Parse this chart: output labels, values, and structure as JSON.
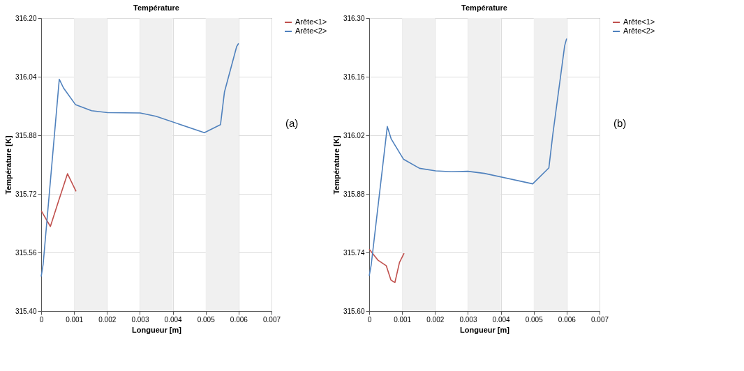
{
  "chart_data": [
    {
      "type": "line",
      "title": "Température",
      "xlabel": "Longueur [m]",
      "ylabel": "Température [K]",
      "annotations": [
        "(a)"
      ],
      "xlim": [
        0,
        0.007
      ],
      "xticks": [
        0,
        0.001,
        0.002,
        0.003,
        0.004,
        0.005,
        0.006,
        0.007
      ],
      "ylim": [
        315.4,
        316.2
      ],
      "yticks": [
        {
          "value": 315.4,
          "label": "315.40"
        },
        315.56,
        315.72,
        315.88,
        316.04,
        {
          "value": 316.2,
          "label": "316.20"
        }
      ],
      "grid": true,
      "legend": "top right",
      "marker": "none",
      "line_style": "solid",
      "bands": [
        {
          "axis": "x",
          "from": 0.001,
          "to": 0.002,
          "color": "#f0f0f0"
        },
        {
          "axis": "x",
          "from": 0.003,
          "to": 0.004,
          "color": "#f0f0f0"
        },
        {
          "axis": "x",
          "from": 0.005,
          "to": 0.006,
          "color": "#f0f0f0"
        }
      ],
      "series": [
        {
          "name": "Arête<1>",
          "color": "#c0504d",
          "x": [
            0,
            0.00028,
            0.00053,
            0.0008,
            0.00106
          ],
          "values": [
            315.674,
            315.631,
            315.701,
            315.775,
            315.727
          ]
        },
        {
          "name": "Arête<2>",
          "color": "#4f81bd",
          "x": [
            0,
            6e-05,
            0.00055,
            0.00068,
            0.00104,
            0.00153,
            0.00202,
            0.00301,
            0.00349,
            0.00496,
            0.00545,
            0.00557,
            0.00594,
            0.006
          ],
          "values": [
            315.494,
            315.528,
            316.033,
            316.009,
            315.964,
            315.947,
            315.942,
            315.941,
            315.932,
            315.887,
            315.909,
            315.998,
            316.122,
            316.131
          ]
        }
      ]
    },
    {
      "type": "line",
      "title": "Température",
      "xlabel": "Longueur [m]",
      "ylabel": "Température [K]",
      "annotations": [
        "(b)"
      ],
      "xlim": [
        0,
        0.007
      ],
      "xticks": [
        0,
        0.001,
        0.002,
        0.003,
        0.004,
        0.005,
        0.006,
        0.007
      ],
      "ylim": [
        315.6,
        316.3
      ],
      "yticks": [
        {
          "value": 315.6,
          "label": "315.60"
        },
        315.74,
        315.88,
        316.02,
        316.16,
        {
          "value": 316.3,
          "label": "316.30"
        }
      ],
      "grid": true,
      "legend": "top right",
      "marker": "none",
      "line_style": "solid",
      "bands": [
        {
          "axis": "x",
          "from": 0.001,
          "to": 0.002,
          "color": "#f0f0f0"
        },
        {
          "axis": "x",
          "from": 0.003,
          "to": 0.004,
          "color": "#f0f0f0"
        },
        {
          "axis": "x",
          "from": 0.005,
          "to": 0.006,
          "color": "#f0f0f0"
        }
      ],
      "series": [
        {
          "name": "Arête<1>",
          "color": "#c0504d",
          "x": [
            0,
            0.00026,
            0.00052,
            0.00066,
            0.00078,
            0.00092,
            0.00106
          ],
          "values": [
            315.748,
            315.722,
            315.708,
            315.674,
            315.668,
            315.716,
            315.738
          ]
        },
        {
          "name": "Arête<2>",
          "color": "#4f81bd",
          "x": [
            0,
            6e-05,
            0.00055,
            0.00067,
            0.00104,
            0.00153,
            0.00202,
            0.00251,
            0.003,
            0.0035,
            0.00497,
            0.00546,
            0.00558,
            0.00594,
            0.006
          ],
          "values": [
            315.684,
            315.71,
            316.041,
            316.011,
            315.963,
            315.941,
            315.935,
            315.933,
            315.934,
            315.929,
            315.904,
            315.942,
            316.022,
            316.234,
            316.251
          ]
        }
      ]
    }
  ]
}
